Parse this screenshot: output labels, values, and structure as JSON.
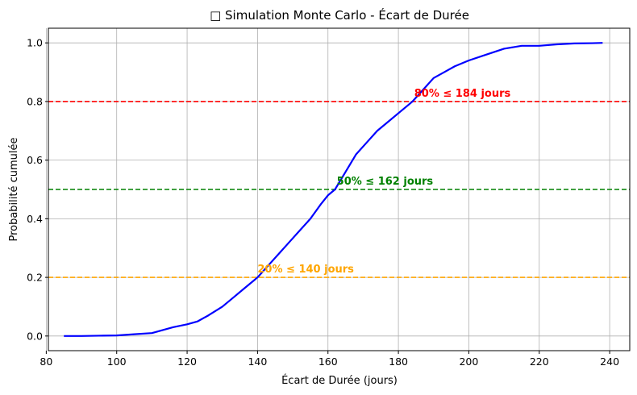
{
  "chart_data": {
    "type": "line",
    "title": "□ Simulation Monte Carlo - Écart de Durée",
    "xlabel": "Écart de Durée (jours)",
    "ylabel": "Probabilité cumulée",
    "xlim": [
      80.6,
      245.7
    ],
    "ylim": [
      -0.05,
      1.05
    ],
    "xticks": [
      80,
      100,
      120,
      140,
      160,
      180,
      200,
      220,
      240
    ],
    "yticks": [
      0.0,
      0.2,
      0.4,
      0.6,
      0.8,
      1.0
    ],
    "xtick_labels": [
      "80",
      "100",
      "120",
      "140",
      "160",
      "180",
      "200",
      "220",
      "240"
    ],
    "ytick_labels": [
      "0.0",
      "0.2",
      "0.4",
      "0.6",
      "0.8",
      "1.0"
    ],
    "grid": true,
    "series": [
      {
        "color": "#0000ff",
        "x": [
          85,
          90,
          95,
          100,
          105,
          110,
          113,
          116,
          120,
          123,
          126,
          130,
          133,
          136,
          139,
          140,
          143,
          146,
          149,
          152,
          155,
          158,
          160,
          162,
          165,
          168,
          171,
          174,
          177,
          180,
          183,
          184,
          187,
          190,
          193,
          196,
          200,
          205,
          210,
          215,
          220,
          225,
          230,
          235,
          238
        ],
        "y": [
          0.0,
          0.0,
          0.001,
          0.002,
          0.006,
          0.01,
          0.02,
          0.03,
          0.04,
          0.05,
          0.07,
          0.1,
          0.13,
          0.16,
          0.19,
          0.2,
          0.24,
          0.28,
          0.32,
          0.36,
          0.4,
          0.45,
          0.48,
          0.5,
          0.56,
          0.62,
          0.66,
          0.7,
          0.73,
          0.76,
          0.79,
          0.8,
          0.84,
          0.88,
          0.9,
          0.92,
          0.94,
          0.96,
          0.98,
          0.99,
          0.99,
          0.995,
          0.998,
          0.999,
          1.0
        ]
      }
    ],
    "hlines": [
      {
        "y": 0.8,
        "color": "#ff0000",
        "label": "80% ≤ 184 jours",
        "label_x": 184.5
      },
      {
        "y": 0.5,
        "color": "#008000",
        "label": "50% ≤ 162 jours",
        "label_x": 162.5
      },
      {
        "y": 0.2,
        "color": "#ffa500",
        "label": "20% ≤ 140 jours",
        "label_x": 140
      }
    ]
  }
}
